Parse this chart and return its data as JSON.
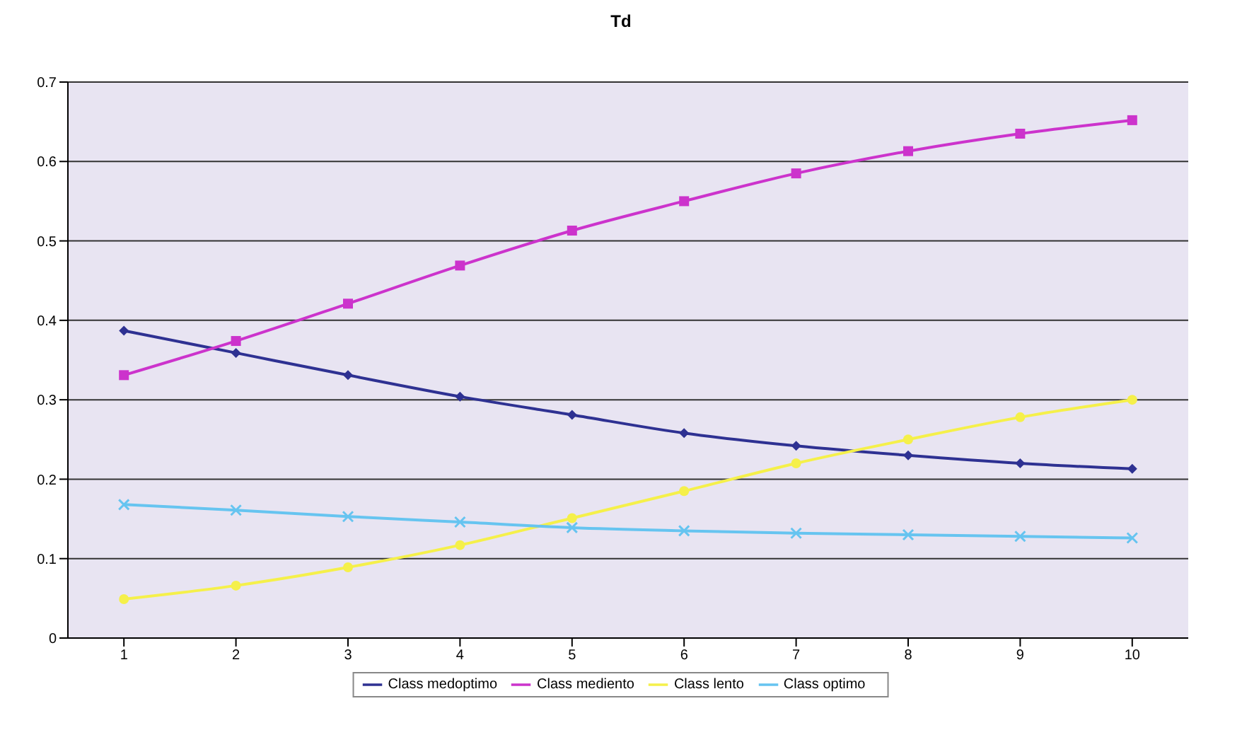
{
  "chart_data": {
    "type": "line",
    "title": "Td",
    "categories": [
      "1",
      "2",
      "3",
      "4",
      "5",
      "6",
      "7",
      "8",
      "9",
      "10"
    ],
    "series": [
      {
        "name": "Class medoptimo",
        "color": "#2e3192",
        "marker": "diamond",
        "values": [
          0.387,
          0.359,
          0.331,
          0.304,
          0.281,
          0.258,
          0.242,
          0.23,
          0.22,
          0.213
        ]
      },
      {
        "name": "Class mediento",
        "color": "#cc33cc",
        "marker": "square",
        "values": [
          0.331,
          0.374,
          0.421,
          0.469,
          0.513,
          0.55,
          0.585,
          0.613,
          0.635,
          0.652
        ]
      },
      {
        "name": "Class lento",
        "color": "#f5f04a",
        "marker": "circle",
        "values": [
          0.049,
          0.066,
          0.089,
          0.117,
          0.151,
          0.185,
          0.22,
          0.25,
          0.278,
          0.3
        ]
      },
      {
        "name": "Class optimo",
        "color": "#66c4f0",
        "marker": "cross",
        "values": [
          0.168,
          0.161,
          0.153,
          0.146,
          0.139,
          0.135,
          0.132,
          0.13,
          0.128,
          0.126
        ]
      }
    ],
    "ylim": [
      0,
      0.7
    ],
    "yticks": [
      0,
      0.1,
      0.2,
      0.3,
      0.4,
      0.5,
      0.6,
      0.7
    ],
    "grid": "y",
    "legend": "bottom"
  }
}
